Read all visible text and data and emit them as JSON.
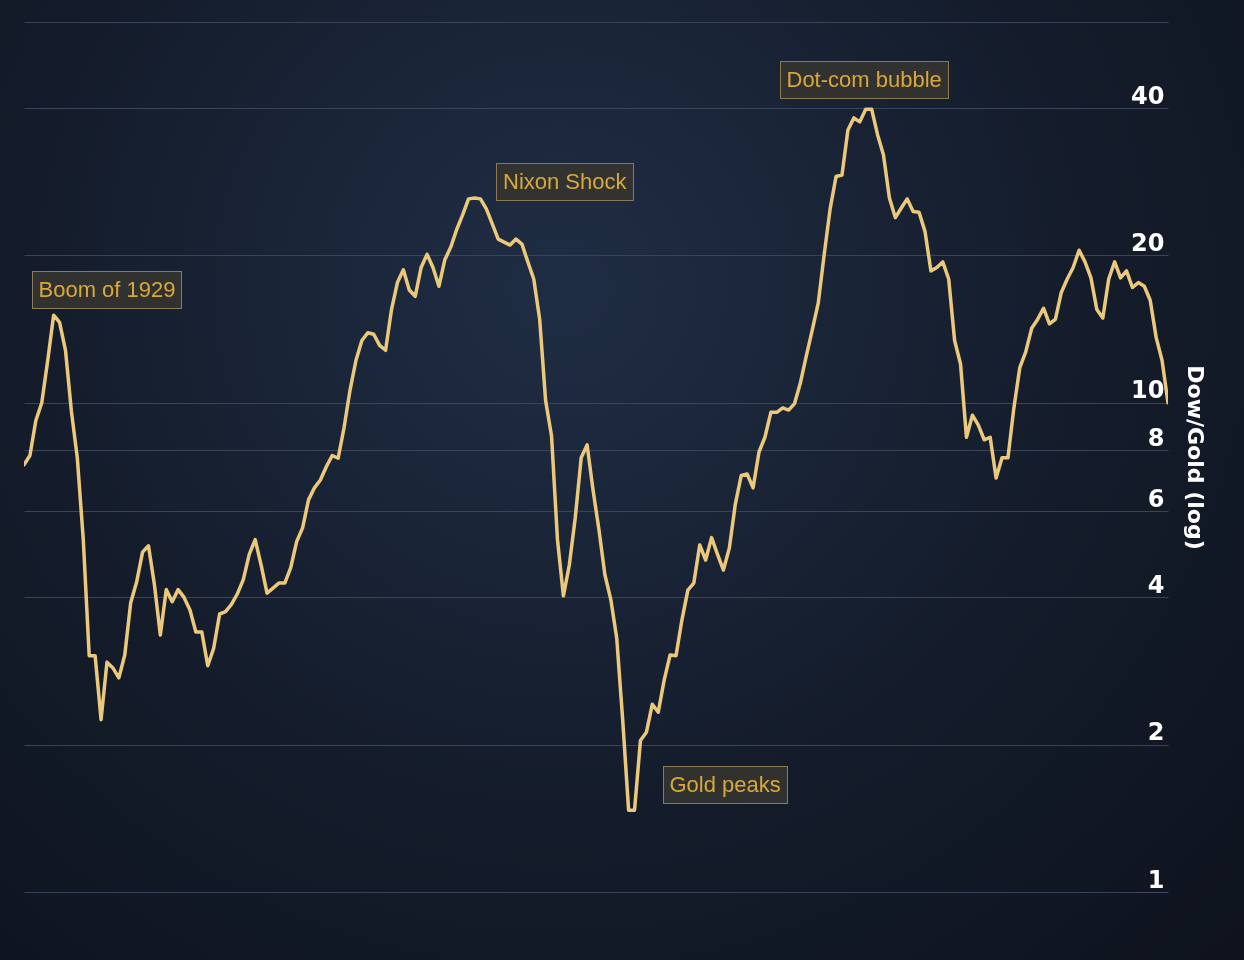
{
  "chart_data": {
    "type": "line",
    "ylabel": "Dow/Gold (log)",
    "categories": [
      null,
      null,
      null,
      null,
      null,
      null,
      null,
      null,
      null,
      null,
      null,
      null,
      null,
      null,
      null,
      null,
      null,
      null,
      null,
      null,
      null,
      null,
      null,
      null,
      null,
      null,
      null,
      null,
      null,
      null,
      null,
      null,
      null,
      null,
      null,
      null,
      null,
      null,
      null,
      null,
      null,
      null,
      null,
      null,
      null,
      null,
      null,
      null,
      null,
      null,
      null,
      null,
      null,
      null,
      null,
      null,
      null,
      null,
      null,
      null,
      null,
      null,
      null,
      null,
      null,
      null,
      null,
      null,
      null,
      null,
      null,
      null,
      null,
      null,
      null,
      null,
      null,
      null,
      null,
      null,
      null,
      null,
      null,
      null,
      null,
      null,
      null,
      null,
      null,
      null,
      null,
      null,
      null,
      null,
      null,
      null,
      null,
      null,
      null,
      null,
      null,
      null,
      null,
      null,
      null,
      null,
      null,
      null,
      null,
      null,
      null,
      null,
      null,
      null,
      null,
      null,
      null,
      null,
      null,
      null,
      null,
      null,
      null,
      null,
      null,
      null,
      null,
      null,
      null,
      null,
      null,
      null,
      null,
      null,
      null,
      null,
      null,
      null,
      null,
      null,
      null,
      null,
      null,
      null,
      null,
      null,
      null,
      null,
      null,
      null,
      null,
      null,
      null,
      null,
      null,
      null,
      null,
      null,
      null,
      null,
      null,
      null,
      null,
      null,
      null,
      null,
      null,
      null,
      null,
      null,
      null,
      null,
      null,
      null,
      null,
      null,
      null,
      null,
      null,
      null,
      null,
      null,
      null,
      null,
      null,
      null,
      null,
      null,
      null,
      null,
      null,
      null,
      null,
      null
    ],
    "series": [
      {
        "color": "#ecc97a",
        "values": [
          7.47,
          7.8,
          9.2,
          10.0,
          12.2,
          15.1,
          14.6,
          12.8,
          9.6,
          7.7,
          5.25,
          3.04,
          3.04,
          2.25,
          2.95,
          2.87,
          2.74,
          3.05,
          3.9,
          4.3,
          4.95,
          5.1,
          4.25,
          3.35,
          4.15,
          3.92,
          4.15,
          4.0,
          3.77,
          3.4,
          3.4,
          2.9,
          3.15,
          3.7,
          3.74,
          3.87,
          4.07,
          4.35,
          4.9,
          5.25,
          4.66,
          4.08,
          4.18,
          4.28,
          4.28,
          4.6,
          5.2,
          5.55,
          6.33,
          6.7,
          6.95,
          7.4,
          7.8,
          7.7,
          8.9,
          10.6,
          12.2,
          13.4,
          13.9,
          13.8,
          13.1,
          12.8,
          15.5,
          17.6,
          18.7,
          17.0,
          16.5,
          18.9,
          20.1,
          18.9,
          17.3,
          19.6,
          20.8,
          22.6,
          24.2,
          26.1,
          26.2,
          26.1,
          24.9,
          23.2,
          21.6,
          21.3,
          21.0,
          21.6,
          21.1,
          19.4,
          17.9,
          14.8,
          10.1,
          8.55,
          5.25,
          4.03,
          4.66,
          5.82,
          7.72,
          8.2,
          6.63,
          5.5,
          4.45,
          3.96,
          3.3,
          2.25,
          1.47,
          1.47,
          2.04,
          2.12,
          2.42,
          2.33,
          2.71,
          3.05,
          3.04,
          3.6,
          4.14,
          4.28,
          5.12,
          4.77,
          5.3,
          4.9,
          4.55,
          5.05,
          6.2,
          7.1,
          7.15,
          6.7,
          7.93,
          8.5,
          9.56,
          9.56,
          9.76,
          9.66,
          9.96,
          11.0,
          12.5,
          14.1,
          16.0,
          20.1,
          24.9,
          29.0,
          29.2,
          36.1,
          38.2,
          37.5,
          39.8,
          39.8,
          35.3,
          32.1,
          26.2,
          23.9,
          25.0,
          26.1,
          24.6,
          24.5,
          22.4,
          18.6,
          18.9,
          19.4,
          17.9,
          13.4,
          12.0,
          8.5,
          9.43,
          9.0,
          8.4,
          8.5,
          7.02,
          7.72,
          7.72,
          9.76,
          11.8,
          12.7,
          14.2,
          14.8,
          15.6,
          14.5,
          14.8,
          16.8,
          17.9,
          18.9,
          20.5,
          19.4,
          18.0,
          15.5,
          14.9,
          17.9,
          19.4,
          18.0,
          18.6,
          17.2,
          17.6,
          17.3,
          16.2,
          13.6,
          12.2,
          10.0
        ]
      }
    ],
    "log": true,
    "ylim": [
      1,
      60
    ],
    "yticks": [
      1,
      2,
      4,
      6,
      8,
      10,
      20,
      40,
      {
        "value": 60,
        "label": null
      }
    ],
    "grid": "y",
    "tick_labels": "y",
    "annotations": [
      "Boom of 1929",
      "Nixon Shock",
      "Gold peaks",
      "Dot-com bubble"
    ]
  }
}
